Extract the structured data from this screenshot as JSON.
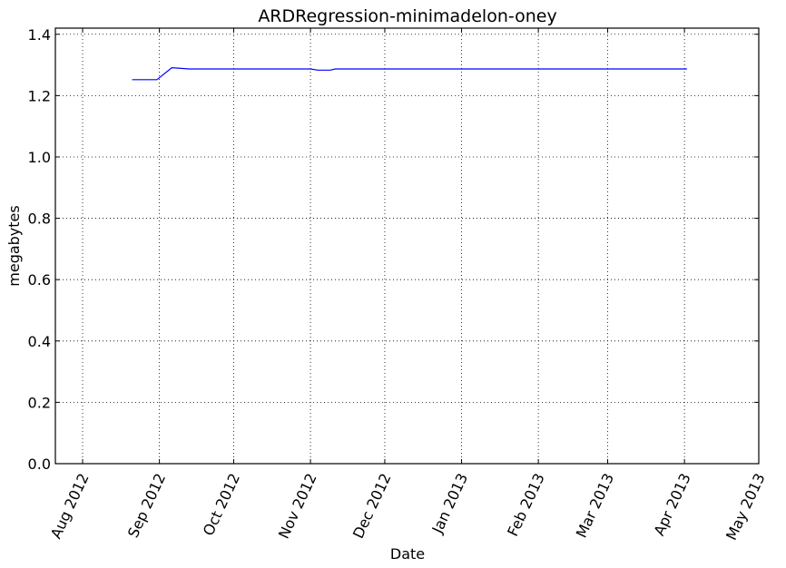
{
  "chart_data": {
    "type": "line",
    "title": "ARDRegression-minimadelon-oney",
    "xlabel": "Date",
    "ylabel": "megabytes",
    "x_ticks": [
      "Aug 2012",
      "Sep 2012",
      "Oct 2012",
      "Nov 2012",
      "Dec 2012",
      "Jan 2013",
      "Feb 2013",
      "Mar 2013",
      "Apr 2013",
      "May 2013"
    ],
    "x_tick_dates": [
      "2012-08-01",
      "2012-09-01",
      "2012-10-01",
      "2012-11-01",
      "2012-12-01",
      "2013-01-01",
      "2013-02-01",
      "2013-03-01",
      "2013-04-01",
      "2013-05-01"
    ],
    "xlim": [
      "2012-07-21",
      "2013-05-01"
    ],
    "y_ticks": [
      "0.0",
      "0.2",
      "0.4",
      "0.6",
      "0.8",
      "1.0",
      "1.2",
      "1.4"
    ],
    "ylim": [
      0,
      1.42
    ],
    "grid": true,
    "series": [
      {
        "color": "#0000ff",
        "points": [
          {
            "x": "2012-08-21",
            "y": 1.252
          },
          {
            "x": "2012-08-31",
            "y": 1.252
          },
          {
            "x": "2012-09-06",
            "y": 1.291
          },
          {
            "x": "2012-09-13",
            "y": 1.287
          },
          {
            "x": "2012-11-01",
            "y": 1.287
          },
          {
            "x": "2012-11-04",
            "y": 1.283
          },
          {
            "x": "2012-11-09",
            "y": 1.283
          },
          {
            "x": "2012-11-11",
            "y": 1.287
          },
          {
            "x": "2013-04-02",
            "y": 1.287
          }
        ]
      }
    ]
  }
}
